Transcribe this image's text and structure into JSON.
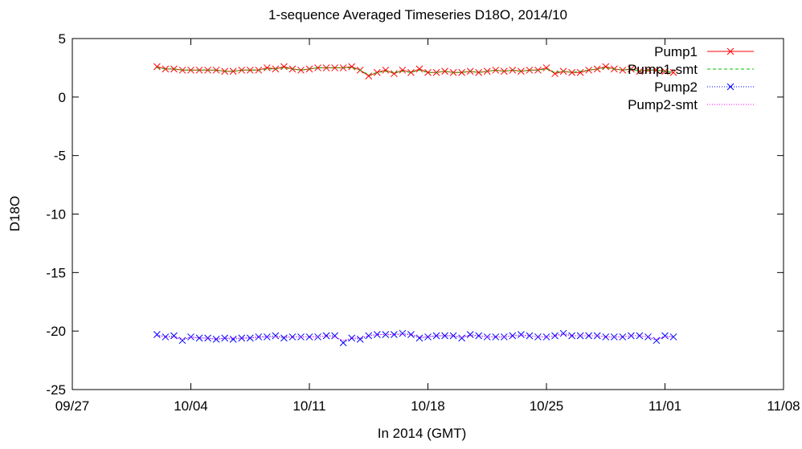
{
  "chart_data": {
    "type": "line",
    "title": "1-sequence Averaged Timeseries D18O, 2014/10",
    "xlabel": "In 2014 (GMT)",
    "ylabel": "D18O",
    "xlim": [
      "2014-09-27",
      "2014-11-08"
    ],
    "ylim": [
      -25,
      5
    ],
    "x_ticks": [
      "09/27",
      "10/04",
      "10/11",
      "10/18",
      "10/25",
      "11/01",
      "11/08"
    ],
    "y_ticks": [
      5,
      0,
      -5,
      -10,
      -15,
      -20,
      -25
    ],
    "grid": false,
    "legend_position": "top-right",
    "x": [
      "2014-10-02",
      "2014-10-02.5",
      "2014-10-03",
      "2014-10-03.5",
      "2014-10-04",
      "2014-10-04.5",
      "2014-10-05",
      "2014-10-05.5",
      "2014-10-06",
      "2014-10-06.5",
      "2014-10-07",
      "2014-10-07.5",
      "2014-10-08",
      "2014-10-08.5",
      "2014-10-09",
      "2014-10-09.5",
      "2014-10-10",
      "2014-10-10.5",
      "2014-10-11",
      "2014-10-11.5",
      "2014-10-12",
      "2014-10-12.5",
      "2014-10-13",
      "2014-10-13.5",
      "2014-10-14",
      "2014-10-14.5",
      "2014-10-15",
      "2014-10-15.5",
      "2014-10-16",
      "2014-10-16.5",
      "2014-10-17",
      "2014-10-17.5",
      "2014-10-18",
      "2014-10-18.5",
      "2014-10-19",
      "2014-10-19.5",
      "2014-10-20",
      "2014-10-20.5",
      "2014-10-21",
      "2014-10-21.5",
      "2014-10-22",
      "2014-10-22.5",
      "2014-10-23",
      "2014-10-23.5",
      "2014-10-24",
      "2014-10-24.5",
      "2014-10-25",
      "2014-10-25.5",
      "2014-10-26",
      "2014-10-26.5",
      "2014-10-27",
      "2014-10-27.5",
      "2014-10-28",
      "2014-10-28.5",
      "2014-10-29",
      "2014-10-29.5",
      "2014-10-30",
      "2014-10-30.5",
      "2014-10-31",
      "2014-10-31.5",
      "2014-11-01",
      "2014-11-01.5"
    ],
    "series": [
      {
        "name": "Pump1",
        "color": "#ff0000",
        "style": "lines+crosses",
        "values": [
          2.6,
          2.4,
          2.4,
          2.3,
          2.3,
          2.3,
          2.3,
          2.3,
          2.2,
          2.2,
          2.3,
          2.3,
          2.3,
          2.5,
          2.4,
          2.6,
          2.4,
          2.3,
          2.4,
          2.5,
          2.5,
          2.5,
          2.5,
          2.6,
          2.3,
          1.8,
          2.1,
          2.3,
          2.0,
          2.3,
          2.1,
          2.4,
          2.1,
          2.1,
          2.2,
          2.1,
          2.1,
          2.2,
          2.1,
          2.2,
          2.3,
          2.2,
          2.3,
          2.2,
          2.3,
          2.3,
          2.5,
          2.0,
          2.2,
          2.1,
          2.1,
          2.3,
          2.4,
          2.6,
          2.4,
          2.3,
          2.4,
          2.2,
          2.3,
          2.3,
          2.2,
          2.1
        ]
      },
      {
        "name": "Pump1-smt",
        "color": "#00c000",
        "style": "dashed",
        "values": [
          2.5,
          2.4,
          2.4,
          2.3,
          2.3,
          2.3,
          2.3,
          2.3,
          2.2,
          2.2,
          2.3,
          2.3,
          2.3,
          2.4,
          2.4,
          2.5,
          2.4,
          2.3,
          2.4,
          2.5,
          2.5,
          2.5,
          2.5,
          2.5,
          2.3,
          1.9,
          2.1,
          2.2,
          2.1,
          2.2,
          2.1,
          2.3,
          2.1,
          2.1,
          2.2,
          2.1,
          2.1,
          2.2,
          2.1,
          2.2,
          2.3,
          2.2,
          2.3,
          2.2,
          2.3,
          2.3,
          2.4,
          2.1,
          2.2,
          2.1,
          2.2,
          2.3,
          2.4,
          2.5,
          2.4,
          2.3,
          2.4,
          2.2,
          2.3,
          2.3,
          2.2,
          2.1
        ]
      },
      {
        "name": "Pump2",
        "color": "#0000ff",
        "style": "dotted+crosses",
        "values": [
          -20.3,
          -20.5,
          -20.4,
          -20.8,
          -20.5,
          -20.6,
          -20.6,
          -20.7,
          -20.6,
          -20.7,
          -20.6,
          -20.6,
          -20.5,
          -20.5,
          -20.4,
          -20.6,
          -20.5,
          -20.5,
          -20.5,
          -20.5,
          -20.4,
          -20.4,
          -21.0,
          -20.6,
          -20.7,
          -20.4,
          -20.3,
          -20.3,
          -20.3,
          -20.2,
          -20.3,
          -20.6,
          -20.5,
          -20.4,
          -20.4,
          -20.4,
          -20.6,
          -20.3,
          -20.4,
          -20.5,
          -20.5,
          -20.5,
          -20.4,
          -20.3,
          -20.4,
          -20.5,
          -20.5,
          -20.4,
          -20.2,
          -20.4,
          -20.4,
          -20.4,
          -20.4,
          -20.5,
          -20.5,
          -20.5,
          -20.4,
          -20.4,
          -20.5,
          -20.8,
          -20.4,
          -20.5
        ]
      },
      {
        "name": "Pump2-smt",
        "color": "#ff00ff",
        "style": "dotted",
        "values": [
          -20.4,
          -20.5,
          -20.5,
          -20.7,
          -20.5,
          -20.6,
          -20.6,
          -20.7,
          -20.6,
          -20.6,
          -20.6,
          -20.6,
          -20.5,
          -20.5,
          -20.5,
          -20.5,
          -20.5,
          -20.5,
          -20.5,
          -20.5,
          -20.4,
          -20.5,
          -20.8,
          -20.6,
          -20.6,
          -20.4,
          -20.3,
          -20.3,
          -20.3,
          -20.3,
          -20.3,
          -20.5,
          -20.5,
          -20.4,
          -20.4,
          -20.4,
          -20.5,
          -20.4,
          -20.4,
          -20.5,
          -20.5,
          -20.5,
          -20.4,
          -20.4,
          -20.4,
          -20.5,
          -20.5,
          -20.4,
          -20.3,
          -20.4,
          -20.4,
          -20.4,
          -20.4,
          -20.5,
          -20.5,
          -20.5,
          -20.4,
          -20.4,
          -20.5,
          -20.7,
          -20.5,
          -20.5
        ]
      }
    ]
  }
}
